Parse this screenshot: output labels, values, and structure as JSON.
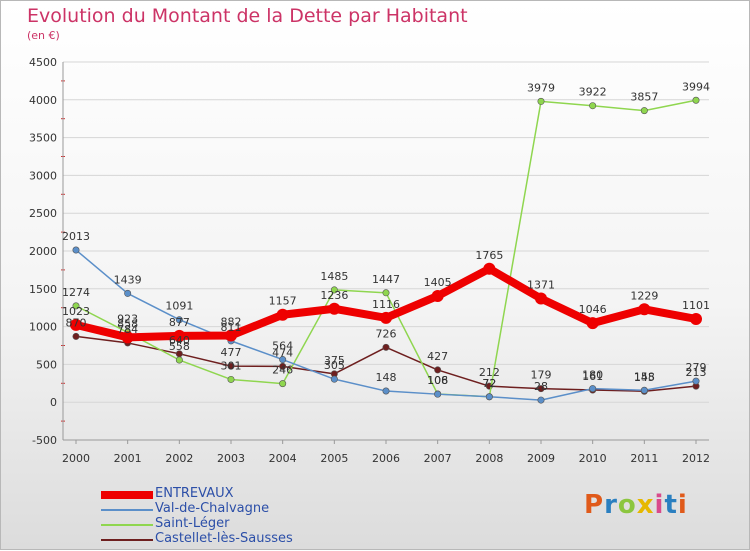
{
  "header": {
    "title": "Evolution du Montant de la Dette par Habitant",
    "subtitle": "(en €)"
  },
  "logo": {
    "text": "Proxiti",
    "colors": [
      "#e05a1a",
      "#2a7fc0",
      "#8cc63f",
      "#e6b800",
      "#d94a8c",
      "#2a7fc0",
      "#e05a1a"
    ]
  },
  "chart_data": {
    "type": "line",
    "x": [
      2000,
      2001,
      2002,
      2003,
      2004,
      2005,
      2006,
      2007,
      2008,
      2009,
      2010,
      2011,
      2012
    ],
    "ylim": [
      -500,
      4500
    ],
    "yticks": [
      -500,
      0,
      500,
      1000,
      1500,
      2000,
      2500,
      3000,
      3500,
      4000,
      4500
    ],
    "legend_position": "bottom-left",
    "series": [
      {
        "name": "ENTREVAUX",
        "color": "#ee0000",
        "values": [
          1023,
          858,
          877,
          882,
          1157,
          1236,
          1116,
          1405,
          1765,
          1371,
          1046,
          1229,
          1101
        ]
      },
      {
        "name": "Val-de-Chalvagne",
        "color": "#5b8fc9",
        "values": [
          2013,
          1439,
          1091,
          811,
          564,
          305,
          148,
          106,
          72,
          28,
          180,
          158,
          279
        ]
      },
      {
        "name": "Saint-Léger",
        "color": "#8fd64f",
        "values": [
          1274,
          923,
          558,
          301,
          246,
          1485,
          1447,
          108,
          72,
          3979,
          3922,
          3857,
          3994
        ]
      },
      {
        "name": "Castellet-lès-Sausses",
        "color": "#6e1f1f",
        "values": [
          870,
          784,
          640,
          477,
          474,
          375,
          726,
          427,
          212,
          179,
          161,
          145,
          213
        ]
      }
    ]
  }
}
